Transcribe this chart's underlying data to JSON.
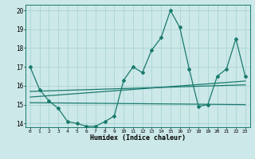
{
  "xlabel": "Humidex (Indice chaleur)",
  "bg_color": "#cce8e8",
  "line_color": "#1a7a6e",
  "grid_color": "#aad4d4",
  "xlim": [
    -0.5,
    23.5
  ],
  "ylim": [
    13.8,
    20.3
  ],
  "xticks": [
    0,
    1,
    2,
    3,
    4,
    5,
    6,
    7,
    8,
    9,
    10,
    11,
    12,
    13,
    14,
    15,
    16,
    17,
    18,
    19,
    20,
    21,
    22,
    23
  ],
  "yticks": [
    14,
    15,
    16,
    17,
    18,
    19,
    20
  ],
  "main_x": [
    0,
    1,
    2,
    3,
    4,
    5,
    6,
    7,
    8,
    9,
    10,
    11,
    12,
    13,
    14,
    15,
    16,
    17,
    18,
    19,
    20,
    21,
    22,
    23
  ],
  "main_y": [
    17.0,
    15.8,
    15.2,
    14.8,
    14.1,
    14.0,
    13.85,
    13.85,
    14.1,
    14.4,
    16.3,
    17.0,
    16.7,
    17.9,
    18.55,
    20.0,
    19.1,
    16.9,
    14.9,
    15.0,
    16.5,
    16.9,
    18.5,
    16.5
  ],
  "trend1_x": [
    0,
    23
  ],
  "trend1_y": [
    15.7,
    16.05
  ],
  "trend2_x": [
    0,
    23
  ],
  "trend2_y": [
    15.4,
    16.25
  ],
  "trend3_x": [
    0,
    23
  ],
  "trend3_y": [
    15.1,
    15.0
  ]
}
